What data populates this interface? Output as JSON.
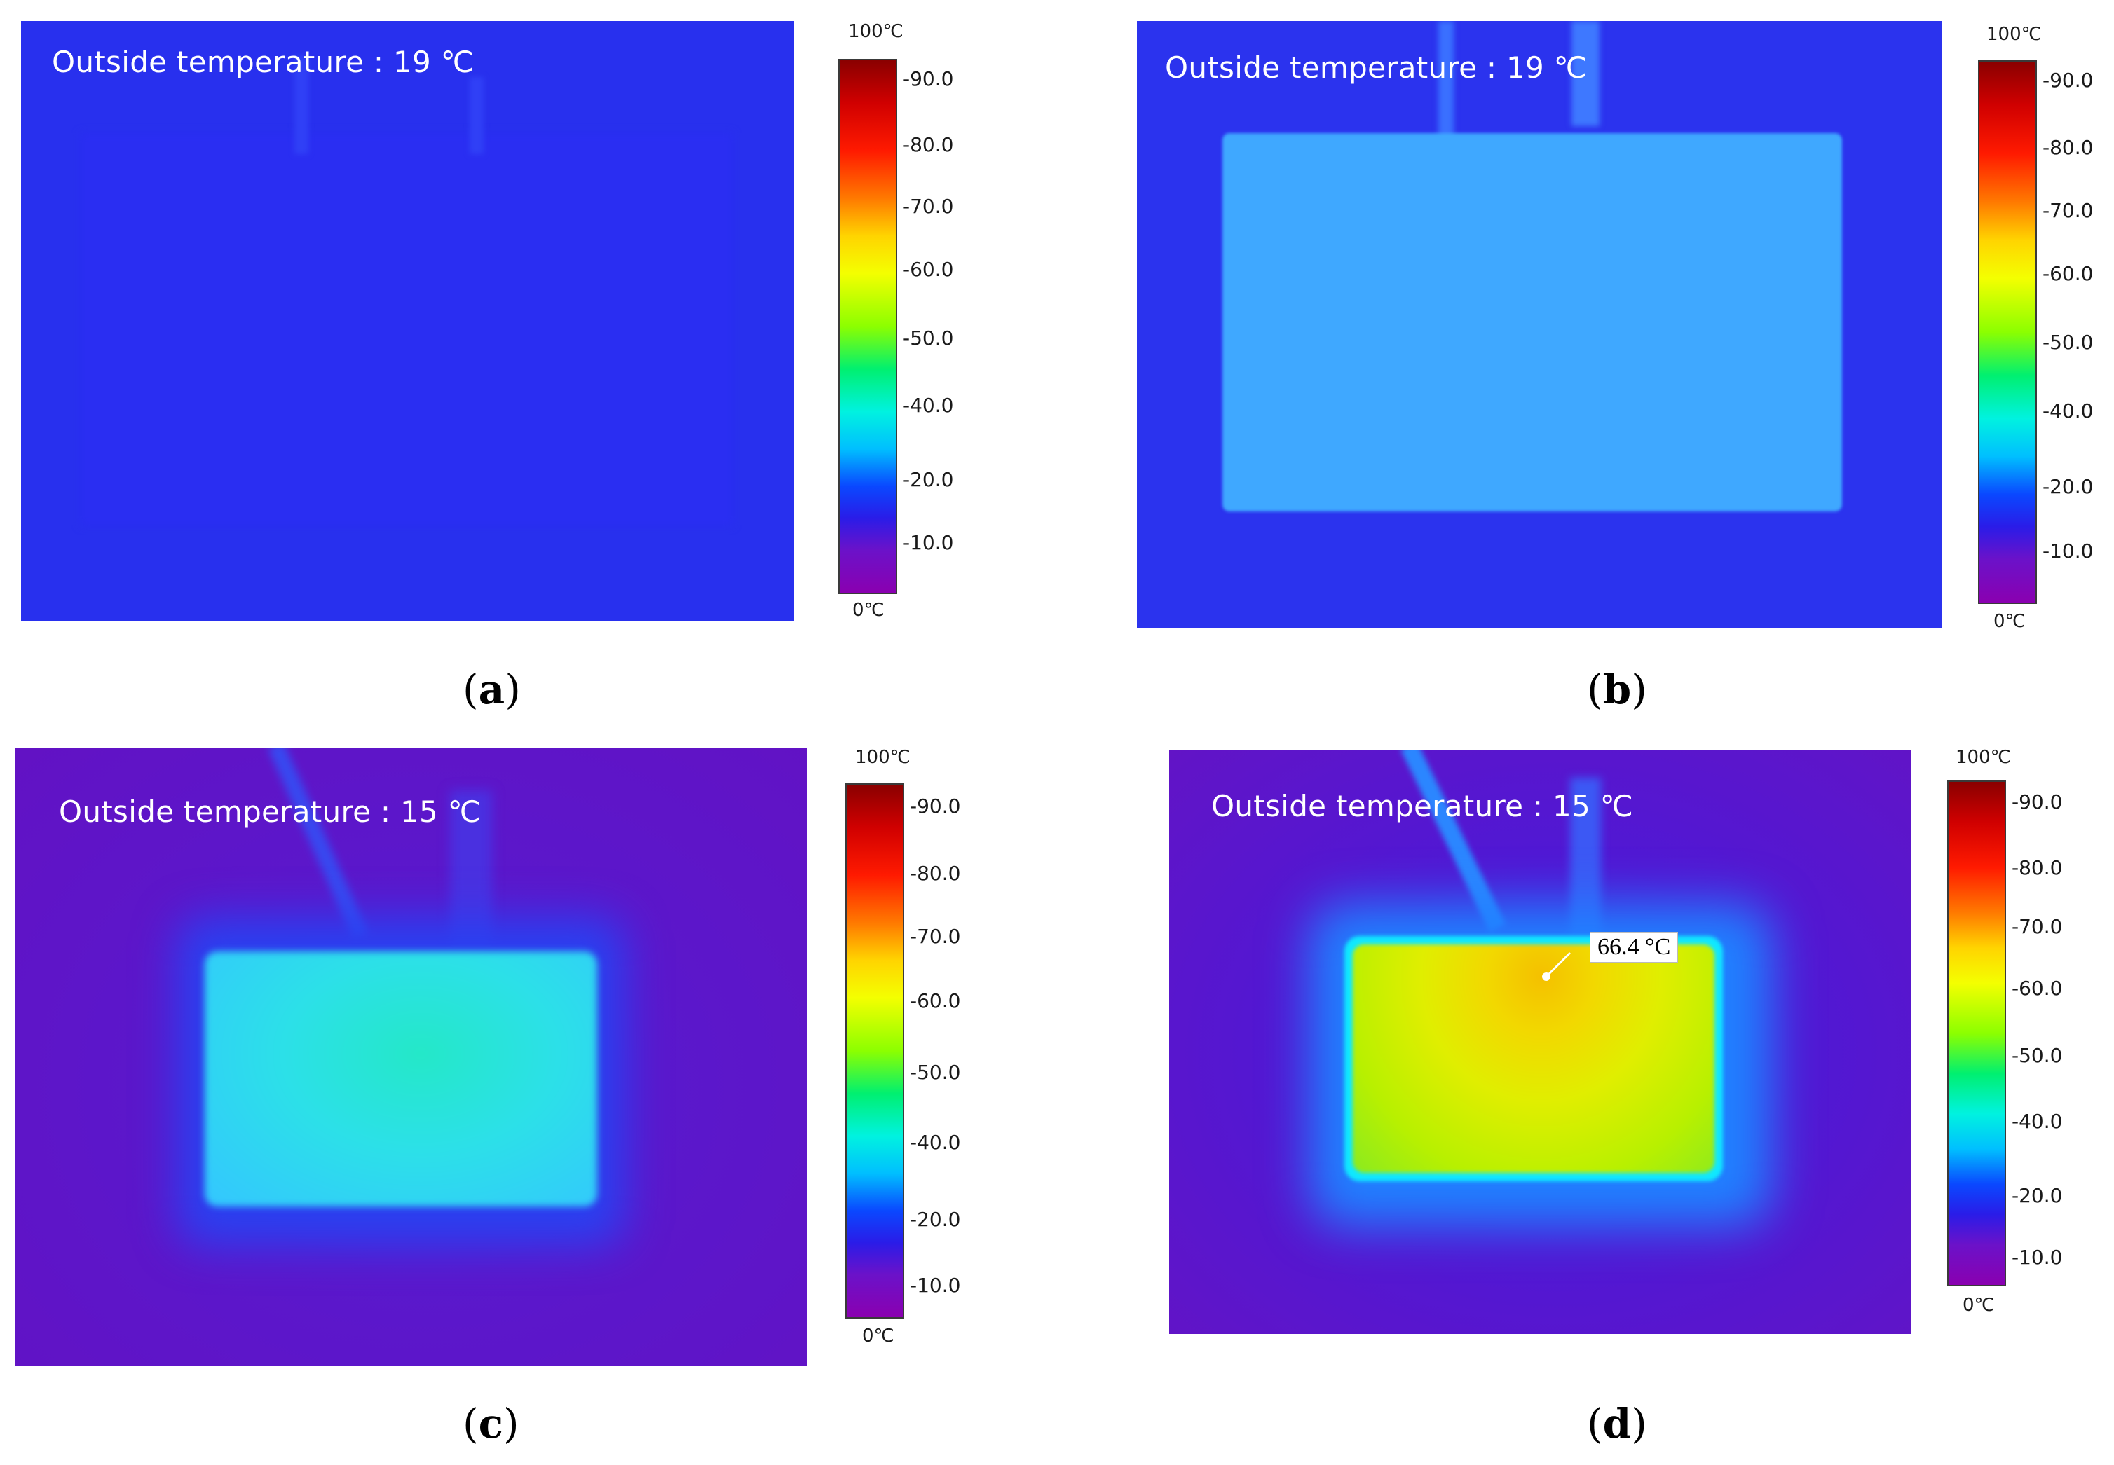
{
  "panels": [
    {
      "id": "a",
      "outside_temperature_label": "Outside temperature : 19 ℃",
      "scale": {
        "max_label": "100℃",
        "min_label": "0℃",
        "ticks": [
          "-90.0",
          "-80.0",
          "-70.0",
          "-60.0",
          "-50.0",
          "-40.0",
          "-20.0",
          "-10.0"
        ]
      },
      "caption_letter": "a"
    },
    {
      "id": "b",
      "outside_temperature_label": "Outside temperature : 19 ℃",
      "scale": {
        "max_label": "100℃",
        "min_label": "0℃",
        "ticks": [
          "-90.0",
          "-80.0",
          "-70.0",
          "-60.0",
          "-50.0",
          "-40.0",
          "-20.0",
          "-10.0"
        ]
      },
      "caption_letter": "b"
    },
    {
      "id": "c",
      "outside_temperature_label": "Outside temperature : 15 ℃",
      "scale": {
        "max_label": "100℃",
        "min_label": "0℃",
        "ticks": [
          "-90.0",
          "-80.0",
          "-70.0",
          "-60.0",
          "-50.0",
          "-40.0",
          "-20.0",
          "-10.0"
        ]
      },
      "caption_letter": "c"
    },
    {
      "id": "d",
      "outside_temperature_label": "Outside temperature : 15 ℃",
      "scale": {
        "max_label": "100℃",
        "min_label": "0℃",
        "ticks": [
          "-90.0",
          "-80.0",
          "-70.0",
          "-60.0",
          "-50.0",
          "-40.0",
          "-20.0",
          "-10.0"
        ]
      },
      "hotspot_label": "66.4 °C",
      "caption_letter": "d"
    }
  ],
  "colors": {
    "cold_blue": "#2c2ef0",
    "background_violet": "#6014c8",
    "warm_cyan": "#4ec8ff",
    "hot_yellow": "#f0e000"
  }
}
